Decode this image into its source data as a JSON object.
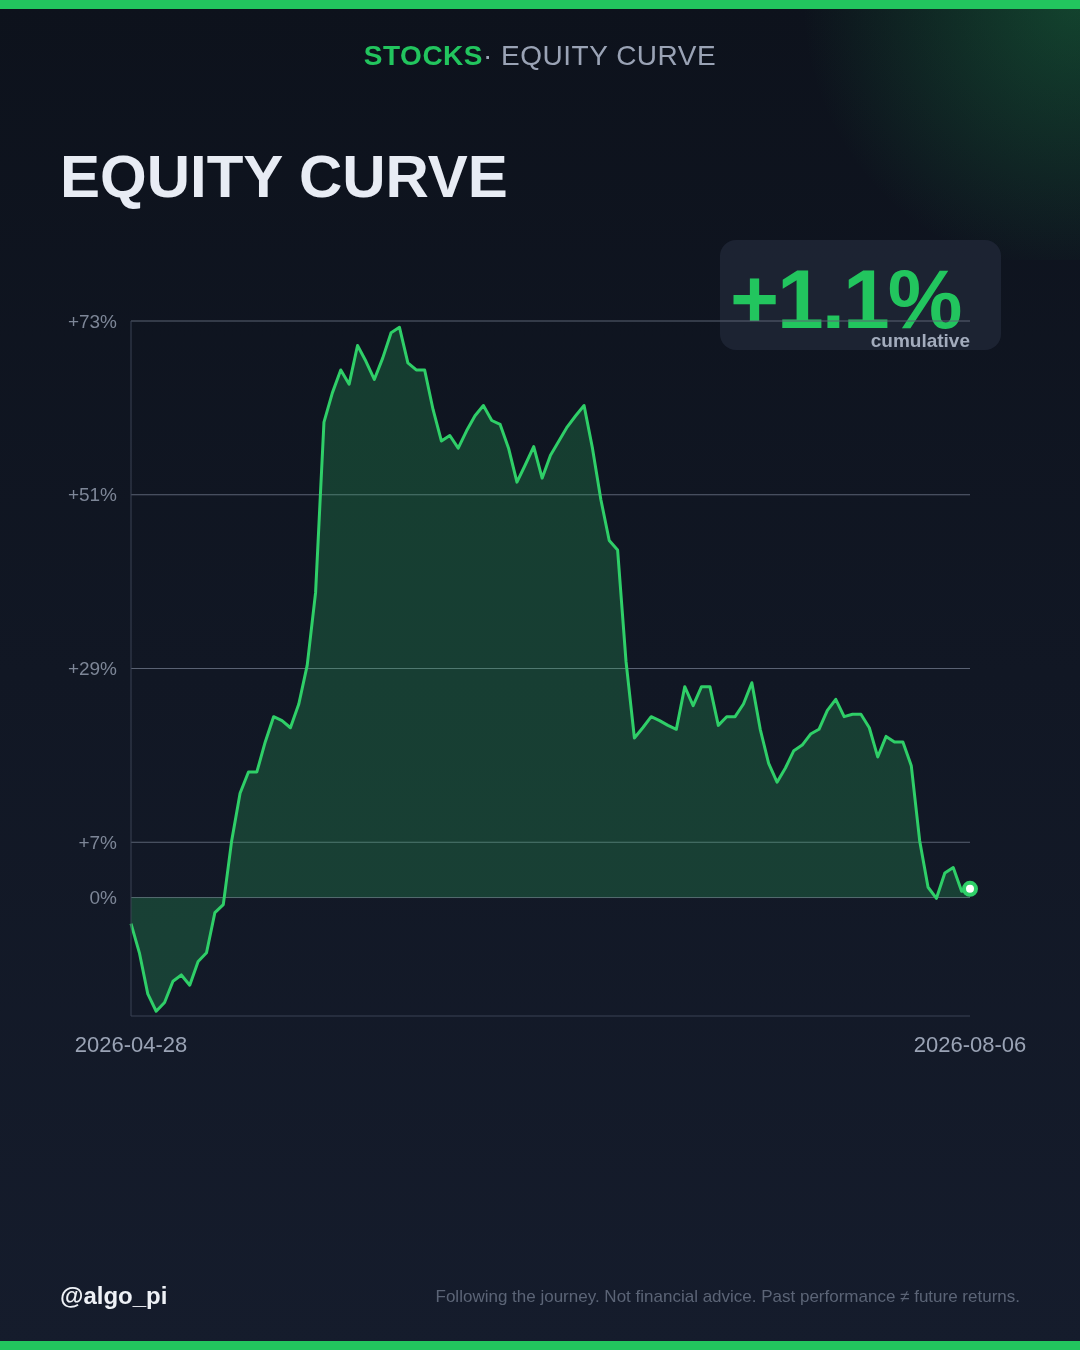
{
  "chart_data": {
    "type": "area",
    "title": "EQUITY CURVE",
    "subtitle": "STOCKS· EQUITY CURVE",
    "annotations": [
      "+1.1%",
      "cumulative",
      "@algo_pi",
      "Following the journey. Not financial advice. Past performance ≠ future returns."
    ],
    "x": [
      "2026-04-28",
      "2026-04-29",
      "2026-04-30",
      "2026-05-01",
      "2026-05-02",
      "2026-05-03",
      "2026-05-04",
      "2026-05-05",
      "2026-05-06",
      "2026-05-07",
      "2026-05-08",
      "2026-05-09",
      "2026-05-10",
      "2026-05-11",
      "2026-05-12",
      "2026-05-13",
      "2026-05-14",
      "2026-05-15",
      "2026-05-16",
      "2026-05-17",
      "2026-05-18",
      "2026-05-19",
      "2026-05-20",
      "2026-05-21",
      "2026-05-22",
      "2026-05-23",
      "2026-05-24",
      "2026-05-25",
      "2026-05-26",
      "2026-05-27",
      "2026-05-28",
      "2026-05-29",
      "2026-05-30",
      "2026-05-31",
      "2026-06-01",
      "2026-06-02",
      "2026-06-03",
      "2026-06-04",
      "2026-06-05",
      "2026-06-06",
      "2026-06-07",
      "2026-06-08",
      "2026-06-09",
      "2026-06-10",
      "2026-06-11",
      "2026-06-12",
      "2026-06-13",
      "2026-06-14",
      "2026-06-15",
      "2026-06-16",
      "2026-06-17",
      "2026-06-18",
      "2026-06-19",
      "2026-06-20",
      "2026-06-21",
      "2026-06-22",
      "2026-06-23",
      "2026-06-24",
      "2026-06-25",
      "2026-06-26",
      "2026-06-27",
      "2026-06-28",
      "2026-06-29",
      "2026-06-30",
      "2026-07-01",
      "2026-07-02",
      "2026-07-03",
      "2026-07-04",
      "2026-07-05",
      "2026-07-06",
      "2026-07-07",
      "2026-07-08",
      "2026-07-09",
      "2026-07-10",
      "2026-07-11",
      "2026-07-12",
      "2026-07-13",
      "2026-07-14",
      "2026-07-15",
      "2026-07-16",
      "2026-07-17",
      "2026-07-18",
      "2026-07-19",
      "2026-07-20",
      "2026-07-21",
      "2026-07-22",
      "2026-07-23",
      "2026-07-24",
      "2026-07-25",
      "2026-07-26",
      "2026-07-27",
      "2026-07-28",
      "2026-07-29",
      "2026-07-30",
      "2026-07-31",
      "2026-08-01",
      "2026-08-02",
      "2026-08-03",
      "2026-08-04",
      "2026-08-05",
      "2026-08-06"
    ],
    "series": [
      {
        "color": "#2fcf68",
        "values": [
          -3.3,
          -7,
          -12.2,
          -14.4,
          -13.3,
          -10.6,
          -9.8,
          -11.1,
          -8.1,
          -7.0,
          -1.9,
          -0.9,
          7.2,
          13.2,
          15.9,
          15.9,
          19.7,
          22.9,
          22.4,
          21.5,
          24.5,
          29.4,
          38.6,
          60.2,
          63.9,
          66.8,
          65.0,
          69.9,
          67.9,
          65.6,
          68.3,
          71.5,
          72.2,
          67.7,
          66.8,
          66.8,
          61.8,
          57.8,
          58.5,
          56.9,
          59.1,
          61.0,
          62.3,
          60.4,
          59.9,
          56.9,
          52.6,
          54.8,
          57.1,
          53.1,
          56.0,
          57.8,
          59.6,
          61.0,
          62.3,
          56.9,
          50.4,
          45.2,
          44.0,
          29.9,
          20.2,
          21.5,
          22.9,
          22.4,
          21.8,
          21.3,
          26.7,
          24.3,
          26.7,
          26.7,
          21.8,
          22.9,
          22.9,
          24.5,
          27.2,
          21.3,
          17.0,
          14.6,
          16.4,
          18.6,
          19.3,
          20.7,
          21.3,
          23.7,
          25.1,
          22.9,
          23.2,
          23.2,
          21.5,
          17.8,
          20.4,
          19.7,
          19.7,
          16.7,
          7.2,
          1.3,
          -0.1,
          3.1,
          3.8,
          0.8,
          1.1
        ]
      },
      {
        "type": "scatter",
        "color": "#ffffff",
        "x": [
          "2026-08-06"
        ],
        "values": [
          1.1
        ],
        "marker": "circle"
      }
    ],
    "ylim": [
      -15,
      73
    ],
    "yticks": [
      {
        "value": 0,
        "label": "0%"
      },
      {
        "value": 7,
        "label": "+7%"
      },
      {
        "value": 29,
        "label": "+29%"
      },
      {
        "value": 51,
        "label": "+51%"
      },
      {
        "value": 73,
        "label": "+73%"
      }
    ],
    "xlim": [
      "2026-04-28",
      "2026-08-06"
    ],
    "xticks": [
      "2026-04-28",
      "2026-08-06"
    ],
    "grid": "y",
    "legend": false,
    "marker": "none",
    "line_style": "solid"
  }
}
